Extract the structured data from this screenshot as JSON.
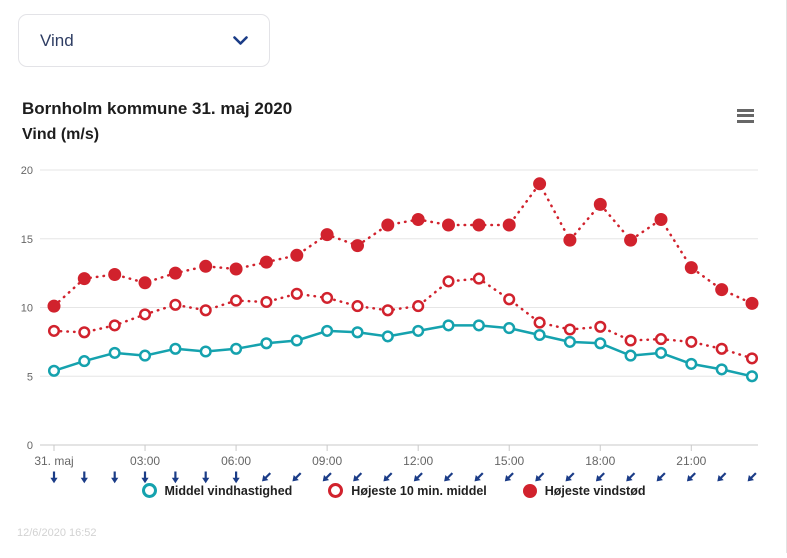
{
  "dropdown": {
    "label": "Vind"
  },
  "header": {
    "title": "Bornholm kommune 31. maj 2020",
    "subtitle": "Vind (m/s)"
  },
  "colors": {
    "navy": "#1b3c87",
    "dropdown_text": "#2e3d63",
    "accent_teal": "#15a2ae",
    "accent_red": "#d1222d"
  },
  "footer": {
    "timestamp": "12/6/2020 16:52"
  },
  "chart_data": {
    "type": "line",
    "title": "Bornholm kommune 31. maj 2020",
    "subtitle": "Vind (m/s)",
    "x_hours": [
      "00:00",
      "01:00",
      "02:00",
      "03:00",
      "04:00",
      "05:00",
      "06:00",
      "07:00",
      "08:00",
      "09:00",
      "10:00",
      "11:00",
      "12:00",
      "13:00",
      "14:00",
      "15:00",
      "16:00",
      "17:00",
      "18:00",
      "19:00",
      "20:00",
      "21:00",
      "22:00",
      "23:00"
    ],
    "x_tick_labels": [
      "31. maj",
      "03:00",
      "06:00",
      "09:00",
      "12:00",
      "15:00",
      "18:00",
      "21:00"
    ],
    "y_ticks": [
      0,
      5,
      10,
      15,
      20
    ],
    "ylim": [
      0,
      20
    ],
    "grid": true,
    "legend_position": "bottom",
    "arrow_color": "#1b3c87",
    "wind_arrows_deg": [
      0,
      0,
      0,
      0,
      0,
      0,
      0,
      45,
      45,
      45,
      45,
      45,
      45,
      45,
      45,
      45,
      45,
      45,
      45,
      45,
      45,
      45,
      45,
      45
    ],
    "series": [
      {
        "name": "Middel vindhastighed",
        "color": "#15a2ae",
        "marker": "open-circle",
        "line": "solid",
        "values": [
          5.4,
          6.1,
          6.7,
          6.5,
          7.0,
          6.8,
          7.0,
          7.4,
          7.6,
          8.3,
          8.2,
          7.9,
          8.3,
          8.7,
          8.7,
          8.5,
          8.0,
          7.5,
          7.4,
          6.5,
          6.7,
          5.9,
          5.5,
          5.0
        ]
      },
      {
        "name": "Højeste 10 min. middel",
        "color": "#d1222d",
        "marker": "open-circle",
        "line": "dotted",
        "values": [
          8.3,
          8.2,
          8.7,
          9.5,
          10.2,
          9.8,
          10.5,
          10.4,
          11.0,
          10.7,
          10.1,
          9.8,
          10.1,
          11.9,
          12.1,
          10.6,
          8.9,
          8.4,
          8.6,
          7.6,
          7.7,
          7.5,
          7.0,
          6.3
        ]
      },
      {
        "name": "Højeste vindstød",
        "color": "#d1222d",
        "marker": "filled-circle",
        "line": "dotted",
        "values": [
          10.1,
          12.1,
          12.4,
          11.8,
          12.5,
          13.0,
          12.8,
          13.3,
          13.8,
          15.3,
          14.5,
          16.0,
          16.4,
          16.0,
          16.0,
          16.0,
          19.0,
          14.9,
          17.5,
          14.9,
          16.4,
          12.9,
          11.3,
          10.3
        ]
      }
    ]
  }
}
